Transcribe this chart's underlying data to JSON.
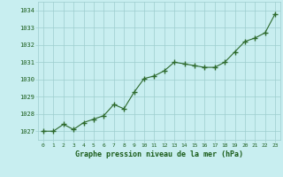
{
  "x": [
    0,
    1,
    2,
    3,
    4,
    5,
    6,
    7,
    8,
    9,
    10,
    11,
    12,
    13,
    14,
    15,
    16,
    17,
    18,
    19,
    20,
    21,
    22,
    23
  ],
  "y": [
    1027.0,
    1027.0,
    1027.4,
    1027.1,
    1027.5,
    1027.7,
    1027.9,
    1028.55,
    1028.3,
    1029.25,
    1030.05,
    1030.2,
    1030.5,
    1031.0,
    1030.9,
    1030.8,
    1030.7,
    1030.7,
    1031.0,
    1031.6,
    1032.2,
    1032.4,
    1032.7,
    1033.8
  ],
  "line_color": "#2d6a2d",
  "marker_color": "#2d6a2d",
  "bg_color": "#c8eef0",
  "grid_color": "#9ecece",
  "xlabel": "Graphe pression niveau de la mer (hPa)",
  "xlabel_color": "#1a5c1a",
  "tick_color": "#1a5c1a",
  "ylim_min": 1026.5,
  "ylim_max": 1034.5,
  "xlim_min": -0.5,
  "xlim_max": 23.5,
  "yticks": [
    1027,
    1028,
    1029,
    1030,
    1031,
    1032,
    1033,
    1034
  ],
  "xticks": [
    0,
    1,
    2,
    3,
    4,
    5,
    6,
    7,
    8,
    9,
    10,
    11,
    12,
    13,
    14,
    15,
    16,
    17,
    18,
    19,
    20,
    21,
    22,
    23
  ]
}
